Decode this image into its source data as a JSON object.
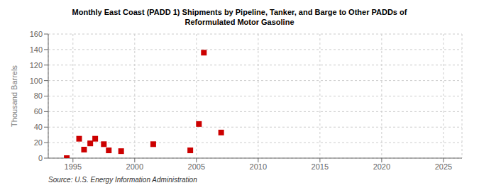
{
  "chart_data": {
    "type": "scatter",
    "title": "Monthly East Coast (PADD 1) Shipments by Pipeline, Tanker, and Barge to Other PADDs of\nReformulated Motor Gasoline",
    "ylabel": "Thousand Barrels",
    "annotation": "Source: U.S. Energy Information Administration",
    "x": [
      1994.5,
      1995.5,
      1995.9,
      1996.4,
      1996.8,
      1997.5,
      1997.9,
      1998.9,
      2001.5,
      2004.5,
      2005.2,
      2005.6,
      2007.0
    ],
    "values": [
      0,
      25,
      11,
      19,
      25,
      18,
      10,
      9,
      18,
      10,
      44,
      136,
      33
    ],
    "color": "#cc0000",
    "marker": "square",
    "xlim": [
      1993.0,
      2026.5
    ],
    "xticks": [
      1995,
      2000,
      2005,
      2010,
      2015,
      2020,
      2025
    ],
    "ylim": [
      0,
      160
    ],
    "yticks": [
      0,
      20,
      40,
      60,
      80,
      100,
      120,
      140,
      160
    ],
    "grid": true
  }
}
